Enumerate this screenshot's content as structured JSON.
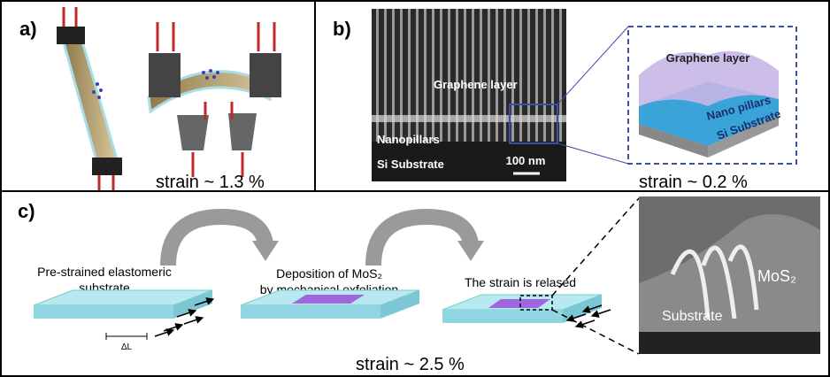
{
  "panel_a": {
    "label": "a)",
    "strain": "strain  ~ 1.3 %"
  },
  "panel_b": {
    "label": "b)",
    "strain": "strain ~ 0.2 %",
    "sem": {
      "graphene": "Graphene layer",
      "pillars": "Nanopillars",
      "substrate": "Si Substrate",
      "scale": "100 nm"
    },
    "inset": {
      "graphene": "Graphene layer",
      "pillars": "Nano pillars",
      "substrate": "Si Substrate"
    }
  },
  "panel_c": {
    "label": "c)",
    "strain": "strain ~ 2.5 %",
    "steps": [
      {
        "lines": [
          "Pre-strained elastomeric",
          "substrate"
        ]
      },
      {
        "lines": [
          "Deposition of MoS₂",
          "by mechanical exfoliation"
        ]
      },
      {
        "lines": [
          "The strain is relased"
        ]
      }
    ],
    "delta": "ΔL",
    "sem": {
      "material": "MoS₂",
      "substrate": "Substrate"
    }
  }
}
